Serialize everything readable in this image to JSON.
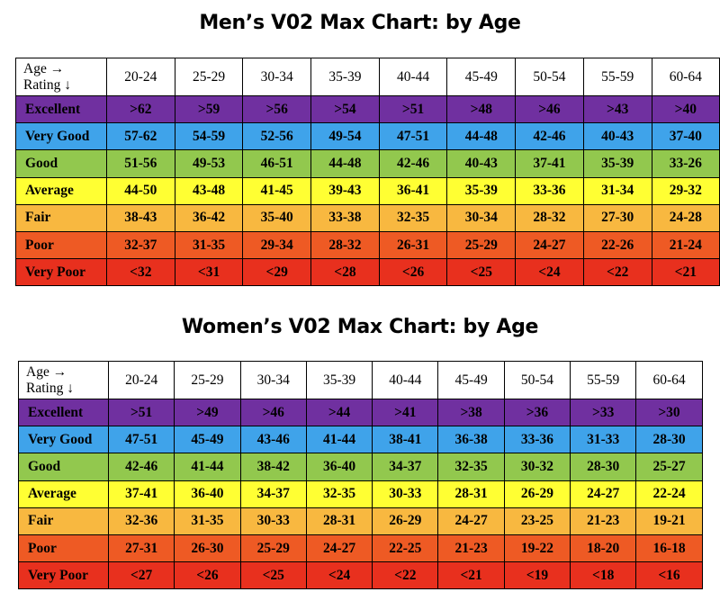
{
  "chart_data": [
    {
      "type": "table",
      "title": "Men’s V02 Max Chart: by Age",
      "corner_line1": "Age →",
      "corner_line2": "Rating ↓",
      "columns": [
        "20-24",
        "25-29",
        "30-34",
        "35-39",
        "40-44",
        "45-49",
        "50-54",
        "55-59",
        "60-64"
      ],
      "rows": [
        {
          "label": "Excellent",
          "color": "#7030A0",
          "values": [
            ">62",
            ">59",
            ">56",
            ">54",
            ">51",
            ">48",
            ">46",
            ">43",
            ">40"
          ]
        },
        {
          "label": "Very Good",
          "color": "#3FA3EA",
          "values": [
            "57-62",
            "54-59",
            "52-56",
            "49-54",
            "47-51",
            "44-48",
            "42-46",
            "40-43",
            "37-40"
          ]
        },
        {
          "label": "Good",
          "color": "#92C84E",
          "values": [
            "51-56",
            "49-53",
            "46-51",
            "44-48",
            "42-46",
            "40-43",
            "37-41",
            "35-39",
            "33-26"
          ]
        },
        {
          "label": "Average",
          "color": "#FFFF33",
          "values": [
            "44-50",
            "43-48",
            "41-45",
            "39-43",
            "36-41",
            "35-39",
            "33-36",
            "31-34",
            "29-32"
          ]
        },
        {
          "label": "Fair",
          "color": "#F8B840",
          "values": [
            "38-43",
            "36-42",
            "35-40",
            "33-38",
            "32-35",
            "30-34",
            "28-32",
            "27-30",
            "24-28"
          ]
        },
        {
          "label": "Poor",
          "color": "#EE5A24",
          "values": [
            "32-37",
            "31-35",
            "29-34",
            "28-32",
            "26-31",
            "25-29",
            "24-27",
            "22-26",
            "21-24"
          ]
        },
        {
          "label": "Very Poor",
          "color": "#E8301E",
          "values": [
            "<32",
            "<31",
            "<29",
            "<28",
            "<26",
            "<25",
            "<24",
            "<22",
            "<21"
          ]
        }
      ]
    },
    {
      "type": "table",
      "title": "Women’s V02 Max Chart: by Age",
      "corner_line1": "Age →",
      "corner_line2": "Rating ↓",
      "columns": [
        "20-24",
        "25-29",
        "30-34",
        "35-39",
        "40-44",
        "45-49",
        "50-54",
        "55-59",
        "60-64"
      ],
      "rows": [
        {
          "label": "Excellent",
          "color": "#7030A0",
          "values": [
            ">51",
            ">49",
            ">46",
            ">44",
            ">41",
            ">38",
            ">36",
            ">33",
            ">30"
          ]
        },
        {
          "label": "Very Good",
          "color": "#3FA3EA",
          "values": [
            "47-51",
            "45-49",
            "43-46",
            "41-44",
            "38-41",
            "36-38",
            "33-36",
            "31-33",
            "28-30"
          ]
        },
        {
          "label": "Good",
          "color": "#92C84E",
          "values": [
            "42-46",
            "41-44",
            "38-42",
            "36-40",
            "34-37",
            "32-35",
            "30-32",
            "28-30",
            "25-27"
          ]
        },
        {
          "label": "Average",
          "color": "#FFFF33",
          "values": [
            "37-41",
            "36-40",
            "34-37",
            "32-35",
            "30-33",
            "28-31",
            "26-29",
            "24-27",
            "22-24"
          ]
        },
        {
          "label": "Fair",
          "color": "#F8B840",
          "values": [
            "32-36",
            "31-35",
            "30-33",
            "28-31",
            "26-29",
            "24-27",
            "23-25",
            "21-23",
            "19-21"
          ]
        },
        {
          "label": "Poor",
          "color": "#EE5A24",
          "values": [
            "27-31",
            "26-30",
            "25-29",
            "24-27",
            "22-25",
            "21-23",
            "19-22",
            "18-20",
            "16-18"
          ]
        },
        {
          "label": "Very Poor",
          "color": "#E8301E",
          "values": [
            "<27",
            "<26",
            "<25",
            "<24",
            "<22",
            "<21",
            "<19",
            "<18",
            "<16"
          ]
        }
      ]
    }
  ]
}
